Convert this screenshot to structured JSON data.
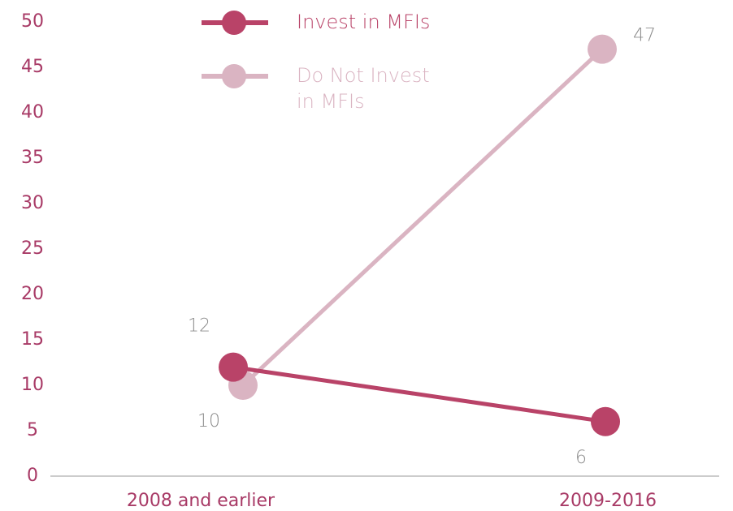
{
  "chart_data": {
    "type": "line",
    "categories": [
      "2008 and earlier",
      "2009-2016"
    ],
    "series": [
      {
        "name": "Invest in MFIs",
        "color": "#b94368",
        "values": [
          12,
          6
        ]
      },
      {
        "name": "Do Not Invest in MFIs",
        "color": "#dab4c2",
        "values": [
          10,
          47
        ]
      }
    ],
    "ylim": [
      0,
      50
    ],
    "yticks": [
      0,
      5,
      10,
      15,
      20,
      25,
      30,
      35,
      40,
      45,
      50
    ],
    "grid": false,
    "legend": "top"
  }
}
